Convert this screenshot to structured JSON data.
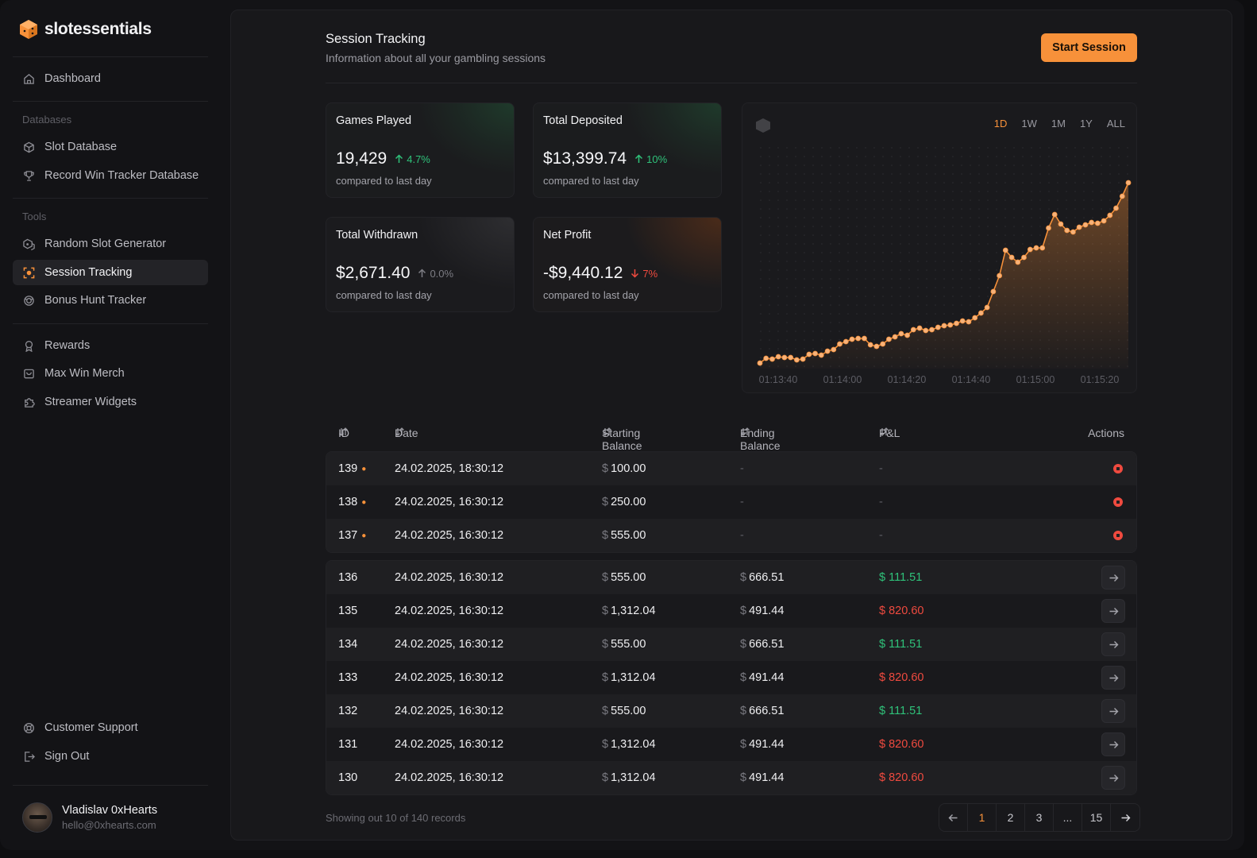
{
  "brand": {
    "name": "slotessentials",
    "accent": "#f7913a"
  },
  "sidebar": {
    "dashboard": "Dashboard",
    "databases_label": "Databases",
    "databases": [
      "Slot Database",
      "Record Win Tracker Database"
    ],
    "tools_label": "Tools",
    "tools": [
      "Random Slot Generator",
      "Session Tracking",
      "Bonus Hunt Tracker"
    ],
    "extras": [
      "Rewards",
      "Max Win Merch",
      "Streamer Widgets"
    ],
    "bottom": [
      "Customer Support",
      "Sign Out"
    ],
    "active_item": "Session Tracking"
  },
  "user": {
    "name": "Vladislav 0xHearts",
    "email": "hello@0xhearts.com"
  },
  "header": {
    "title": "Session Tracking",
    "subtitle": "Information about all your gambling sessions",
    "start_button": "Start Session"
  },
  "cards": [
    {
      "title": "Games Played",
      "value": "19,429",
      "delta": "4.7%",
      "trend": "up",
      "foot": "compared to last day"
    },
    {
      "title": "Total Deposited",
      "value": "$13,399.74",
      "delta": "10%",
      "trend": "up",
      "foot": "compared to last day"
    },
    {
      "title": "Total Withdrawn",
      "value": "$2,671.40",
      "delta": "0.0%",
      "trend": "flat",
      "foot": "compared to last day"
    },
    {
      "title": "Net Profit",
      "value": "-$9,440.12",
      "delta": "7%",
      "trend": "down",
      "foot": "compared to last day"
    }
  ],
  "chart_data": {
    "type": "area",
    "ranges": [
      "1D",
      "1W",
      "1M",
      "1Y",
      "ALL"
    ],
    "selected_range": "1D",
    "x_ticks": [
      "01:13:40",
      "01:14:00",
      "01:14:20",
      "01:14:40",
      "01:15:00",
      "01:15:20"
    ],
    "y": [
      5,
      11,
      10,
      13,
      12,
      12,
      9,
      10,
      16,
      17,
      15,
      20,
      22,
      29,
      32,
      35,
      36,
      36,
      28,
      26,
      29,
      35,
      38,
      42,
      40,
      47,
      49,
      46,
      47,
      50,
      52,
      53,
      55,
      58,
      57,
      62,
      68,
      75,
      95,
      115,
      147,
      138,
      132,
      138,
      148,
      150,
      150,
      175,
      192,
      180,
      172,
      170,
      176,
      179,
      182,
      181,
      184,
      191,
      200,
      215,
      232
    ],
    "x_range": [
      "01:13:40",
      "01:15:25"
    ],
    "grid": "dotted",
    "line_color": "#f7913a"
  },
  "table": {
    "headers": {
      "id": "ID",
      "date": "Date",
      "start": "Starting Balance",
      "end": "Ending Balance",
      "pl": "P&L",
      "actions": "Actions"
    },
    "currency": "$",
    "dash": "-",
    "active": [
      {
        "id": "139",
        "date": "24.02.2025, 18:30:12",
        "start": "100.00"
      },
      {
        "id": "138",
        "date": "24.02.2025, 16:30:12",
        "start": "250.00"
      },
      {
        "id": "137",
        "date": "24.02.2025, 16:30:12",
        "start": "555.00"
      }
    ],
    "completed": [
      {
        "id": "136",
        "date": "24.02.2025, 16:30:12",
        "start": "555.00",
        "end": "666.51",
        "pl": "$ 111.51",
        "sign": "pos"
      },
      {
        "id": "135",
        "date": "24.02.2025, 16:30:12",
        "start": "1,312.04",
        "end": "491.44",
        "pl": "$ 820.60",
        "sign": "neg"
      },
      {
        "id": "134",
        "date": "24.02.2025, 16:30:12",
        "start": "555.00",
        "end": "666.51",
        "pl": "$ 111.51",
        "sign": "pos"
      },
      {
        "id": "133",
        "date": "24.02.2025, 16:30:12",
        "start": "1,312.04",
        "end": "491.44",
        "pl": "$ 820.60",
        "sign": "neg"
      },
      {
        "id": "132",
        "date": "24.02.2025, 16:30:12",
        "start": "555.00",
        "end": "666.51",
        "pl": "$ 111.51",
        "sign": "pos"
      },
      {
        "id": "131",
        "date": "24.02.2025, 16:30:12",
        "start": "1,312.04",
        "end": "491.44",
        "pl": "$ 820.60",
        "sign": "neg"
      },
      {
        "id": "130",
        "date": "24.02.2025, 16:30:12",
        "start": "1,312.04",
        "end": "491.44",
        "pl": "$ 820.60",
        "sign": "neg"
      }
    ]
  },
  "pagination": {
    "summary": "Showing out 10 of 140 records",
    "pages": [
      "1",
      "2",
      "3",
      "...",
      "15"
    ],
    "current": "1"
  },
  "icons": [
    "home-icon",
    "cube-icon",
    "trophy-icon",
    "dice-icon",
    "target-icon",
    "bonus-icon",
    "award-icon",
    "bag-icon",
    "puzzle-icon",
    "support-icon",
    "signout-icon",
    "sort-icon",
    "stop-icon",
    "arrow-right-icon",
    "arrow-left-icon",
    "arrow-up-icon",
    "arrow-down-icon"
  ]
}
